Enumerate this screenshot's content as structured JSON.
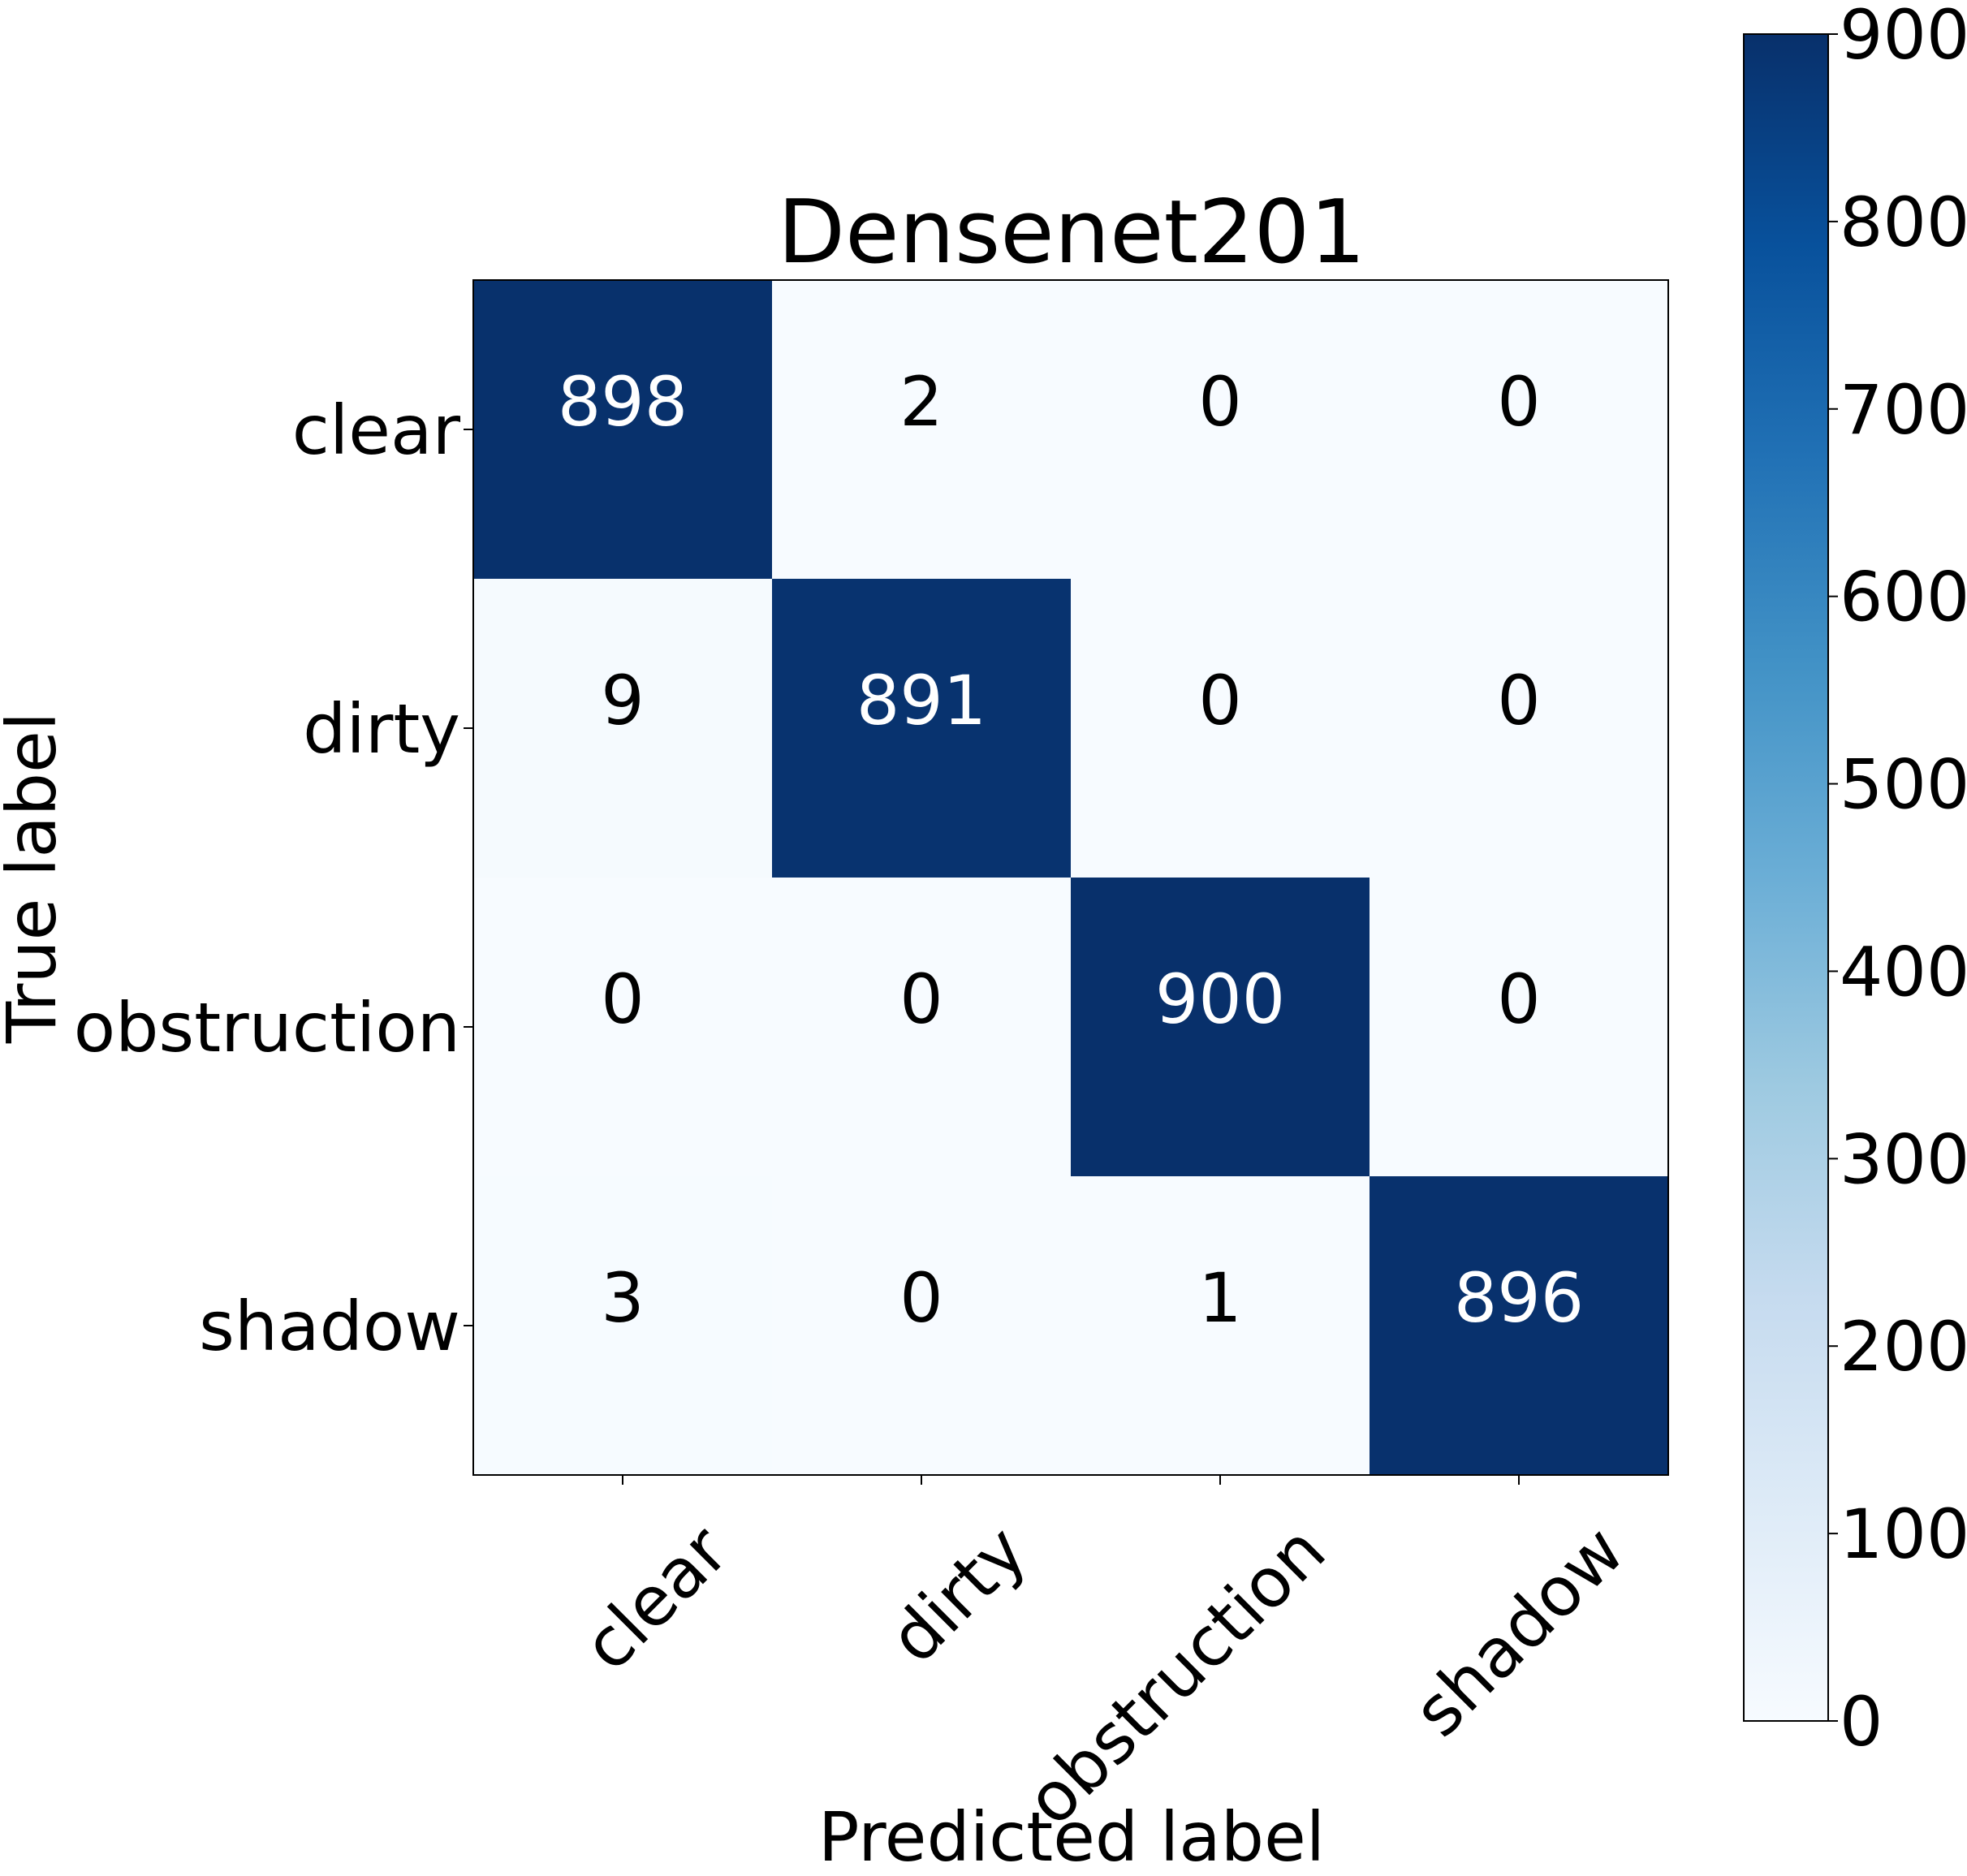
{
  "chart_data": {
    "type": "heatmap",
    "title": "Densenet201",
    "xlabel": "Predicted label",
    "ylabel": "True label",
    "x_categories": [
      "clear",
      "dirty",
      "obstruction",
      "shadow"
    ],
    "y_categories": [
      "clear",
      "dirty",
      "obstruction",
      "shadow"
    ],
    "matrix": [
      [
        898,
        2,
        0,
        0
      ],
      [
        9,
        891,
        0,
        0
      ],
      [
        0,
        0,
        900,
        0
      ],
      [
        3,
        0,
        1,
        896
      ]
    ],
    "colorbar": {
      "min": 0,
      "max": 900,
      "ticks": [
        0,
        100,
        200,
        300,
        400,
        500,
        600,
        700,
        800,
        900
      ],
      "colormap": "Blues"
    },
    "colors": {
      "low": "#f7fbff",
      "high": "#08306b",
      "text_on_dark": "#ffffff",
      "text_on_light": "#000000"
    }
  }
}
